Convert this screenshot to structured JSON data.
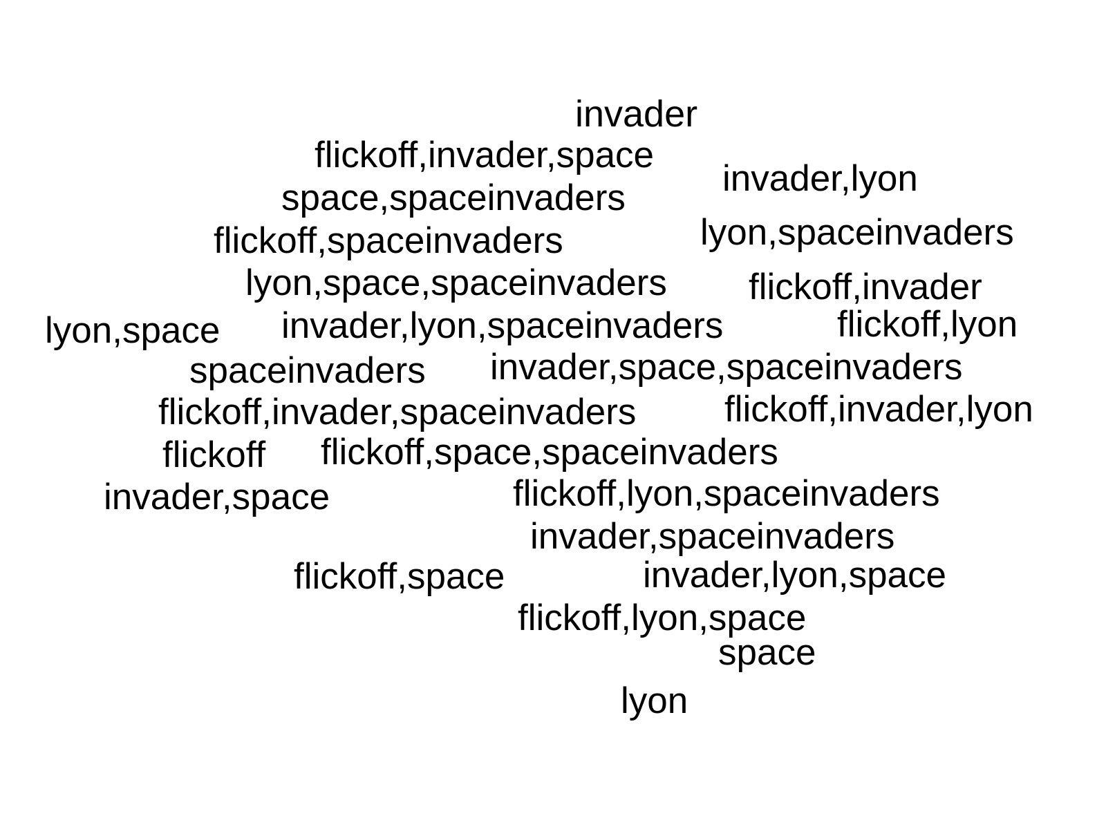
{
  "words": [
    "invader",
    "flickoff,invader,space",
    "invader,lyon",
    "space,spaceinvaders",
    "flickoff,spaceinvaders",
    "lyon,spaceinvaders",
    "lyon,space,spaceinvaders",
    "flickoff,invader",
    "lyon,space",
    "invader,lyon,spaceinvaders",
    "flickoff,lyon",
    "spaceinvaders",
    "invader,space,spaceinvaders",
    "flickoff,invader,spaceinvaders",
    "flickoff,invader,lyon",
    "flickoff",
    "flickoff,space,spaceinvaders",
    "invader,space",
    "flickoff,lyon,spaceinvaders",
    "invader,spaceinvaders",
    "flickoff,space",
    "invader,lyon,space",
    "flickoff,lyon,space",
    "space",
    "lyon"
  ]
}
